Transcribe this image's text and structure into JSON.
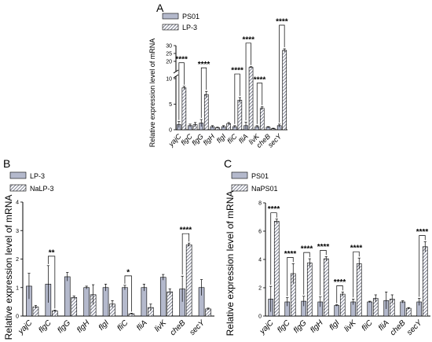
{
  "colors": {
    "solid": "#b4b9cc",
    "hatch_fg": "#5b5f75",
    "hatch_bg": "#ffffff",
    "line": "#000000"
  },
  "chart_data": [
    {
      "panel": "A",
      "type": "bar",
      "ylabel": "Relative expression level of mRNA",
      "categories": [
        "yajC",
        "flgC",
        "flgG",
        "flgH",
        "flgI",
        "fliC",
        "fliA",
        "livK",
        "cheB",
        "secY"
      ],
      "series": [
        {
          "name": "PS01",
          "pattern": "solid",
          "values": [
            1.0,
            0.8,
            1.3,
            0.6,
            0.6,
            0.6,
            0.8,
            0.6,
            0.5,
            0.8
          ],
          "errors": [
            0.6,
            0.3,
            0.7,
            0.2,
            0.2,
            0.2,
            0.7,
            0.2,
            0.1,
            0.3
          ]
        },
        {
          "name": "LP-3",
          "pattern": "hatch",
          "values": [
            8.2,
            1.0,
            6.9,
            0.4,
            1.2,
            5.8,
            16.2,
            4.2,
            0.2,
            27.0
          ],
          "errors": [
            0.3,
            0.4,
            0.6,
            0.1,
            0.2,
            0.5,
            0.4,
            0.3,
            0.1,
            1.0
          ]
        }
      ],
      "ylim": [
        0,
        30
      ],
      "axis_break": [
        10,
        15
      ],
      "yticks": [
        "0",
        "5",
        "10",
        "20",
        "25",
        "30"
      ],
      "significance": [
        {
          "category": "yajC",
          "label": "****"
        },
        {
          "category": "flgG",
          "label": "****"
        },
        {
          "category": "fliC",
          "label": "****"
        },
        {
          "category": "fliA",
          "label": "****"
        },
        {
          "category": "livK",
          "label": "****"
        },
        {
          "category": "secY",
          "label": "****"
        }
      ],
      "legend": "top-left"
    },
    {
      "panel": "B",
      "type": "bar",
      "ylabel": "Relative expression level of mRNA",
      "categories": [
        "yajC",
        "flgC",
        "flgG",
        "flgH",
        "flgI",
        "fliC",
        "fliA",
        "livK",
        "cheB",
        "secY"
      ],
      "series": [
        {
          "name": "LP-3",
          "pattern": "solid",
          "values": [
            1.05,
            1.12,
            1.38,
            1.0,
            1.0,
            1.0,
            1.0,
            1.36,
            0.95,
            1.0
          ],
          "errors": [
            0.45,
            0.65,
            0.15,
            0.05,
            0.12,
            0.08,
            0.12,
            0.1,
            0.45,
            0.28
          ]
        },
        {
          "name": "NaLP-3",
          "pattern": "hatch",
          "values": [
            0.32,
            0.18,
            0.65,
            0.75,
            0.42,
            0.08,
            0.3,
            0.85,
            2.5,
            0.25
          ],
          "errors": [
            0.05,
            0.03,
            0.05,
            0.35,
            0.12,
            0.02,
            0.12,
            0.1,
            0.06,
            0.03
          ]
        }
      ],
      "ylim": [
        0,
        4
      ],
      "yticks": [
        "0",
        "1",
        "2",
        "3",
        "4"
      ],
      "significance": [
        {
          "category": "flgC",
          "label": "**"
        },
        {
          "category": "fliC",
          "label": "*"
        },
        {
          "category": "cheB",
          "label": "****"
        }
      ],
      "legend": "top-left"
    },
    {
      "panel": "C",
      "type": "bar",
      "ylabel": "Relative expression level of mRNA",
      "categories": [
        "yajC",
        "flgC",
        "flgG",
        "flgH",
        "flgI",
        "livK",
        "fliC",
        "fliA",
        "cheB",
        "secY"
      ],
      "series": [
        {
          "name": "PS01",
          "pattern": "solid",
          "values": [
            1.2,
            1.0,
            1.05,
            1.0,
            0.75,
            1.0,
            1.0,
            1.1,
            1.0,
            1.0
          ],
          "errors": [
            0.9,
            0.3,
            0.35,
            0.35,
            0.05,
            0.2,
            0.05,
            0.6,
            0.08,
            0.25
          ]
        },
        {
          "name": "NaPS01",
          "pattern": "hatch",
          "values": [
            6.7,
            3.0,
            3.75,
            4.05,
            1.55,
            3.7,
            1.25,
            1.2,
            0.55,
            4.9
          ],
          "errors": [
            0.15,
            0.7,
            0.3,
            0.15,
            0.15,
            0.4,
            0.25,
            0.3,
            0.05,
            0.35
          ]
        }
      ],
      "ylim": [
        0,
        8
      ],
      "yticks": [
        "0",
        "2",
        "4",
        "6",
        "8"
      ],
      "significance": [
        {
          "category": "yajC",
          "label": "****"
        },
        {
          "category": "flgC",
          "label": "****"
        },
        {
          "category": "flgG",
          "label": "****"
        },
        {
          "category": "flgH",
          "label": "****"
        },
        {
          "category": "flgI",
          "label": "****"
        },
        {
          "category": "livK",
          "label": "****"
        },
        {
          "category": "secY",
          "label": "****"
        }
      ],
      "legend": "top-left"
    }
  ]
}
